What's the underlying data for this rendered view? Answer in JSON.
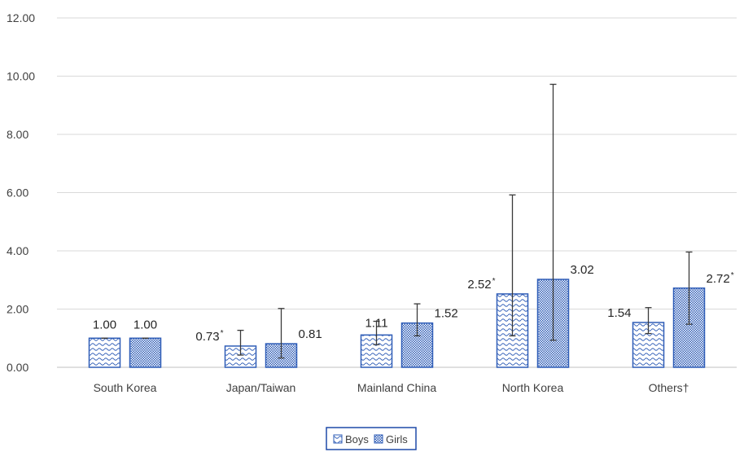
{
  "chart_data": {
    "type": "bar",
    "categories": [
      "South Korea",
      "Japan/Taiwan",
      "Mainland China",
      "North Korea",
      "Others†"
    ],
    "ylim": [
      0,
      12
    ],
    "yticks": [
      0,
      2,
      4,
      6,
      8,
      10,
      12
    ],
    "ytick_labels": [
      "0.00",
      "2.00",
      "4.00",
      "6.00",
      "8.00",
      "10.00",
      "12.00"
    ],
    "grid": true,
    "legend_position": "bottom",
    "series": [
      {
        "name": "Boys",
        "pattern": "wave",
        "color": "#2f5db7",
        "values": [
          1.0,
          0.73,
          1.11,
          2.52,
          1.54
        ],
        "labels": [
          "1.00",
          "0.73",
          "1.11",
          "2.52",
          "1.54"
        ],
        "significant": [
          false,
          true,
          false,
          true,
          false
        ],
        "error_low": [
          1.0,
          0.42,
          0.78,
          1.08,
          1.16
        ],
        "error_high": [
          1.0,
          1.27,
          1.58,
          5.92,
          2.05
        ]
      },
      {
        "name": "Girls",
        "pattern": "crosshatch",
        "color": "#2f5db7",
        "values": [
          1.0,
          0.81,
          1.52,
          3.02,
          2.72
        ],
        "labels": [
          "1.00",
          "0.81",
          "1.52",
          "3.02",
          "2.72"
        ],
        "significant": [
          false,
          false,
          false,
          false,
          true
        ],
        "error_low": [
          1.0,
          0.32,
          1.08,
          0.93,
          1.48
        ],
        "error_high": [
          1.0,
          2.02,
          2.18,
          9.72,
          3.96
        ]
      }
    ]
  }
}
